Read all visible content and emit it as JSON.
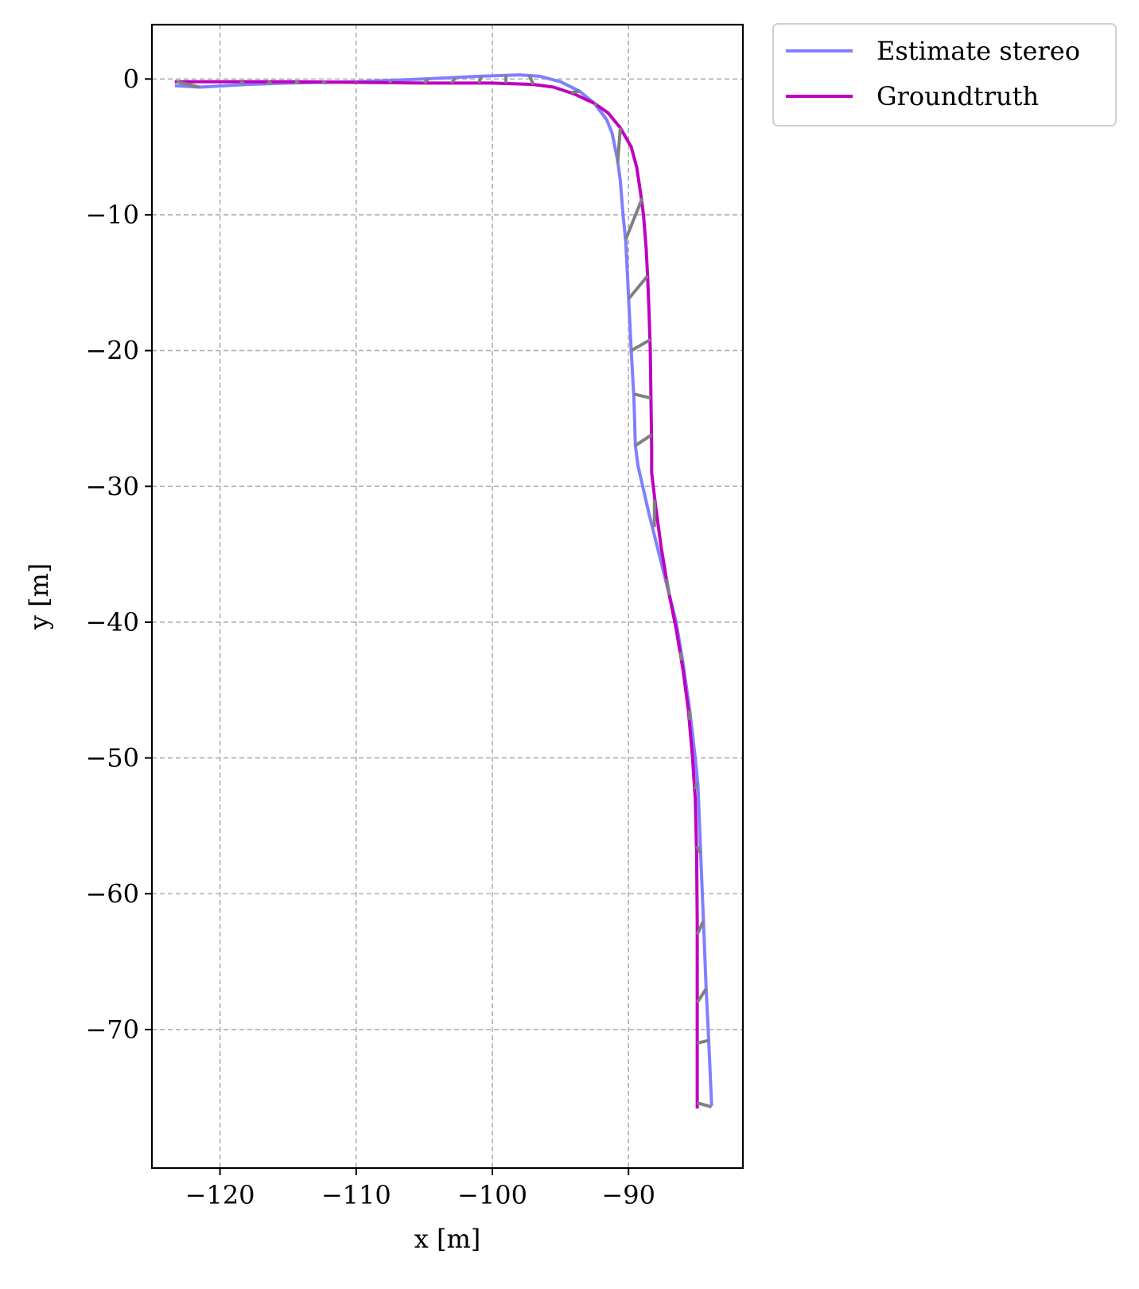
{
  "chart_data": {
    "type": "line",
    "title": "",
    "xlabel": "x [m]",
    "ylabel": "y [m]",
    "xlim": [
      -125,
      -81.6
    ],
    "ylim": [
      -80.2,
      4
    ],
    "xticks": [
      -120,
      -110,
      -100,
      -90
    ],
    "yticks": [
      0,
      -10,
      -20,
      -30,
      -40,
      -50,
      -60,
      -70
    ],
    "xtick_labels": [
      "−120",
      "−110",
      "−100",
      "−90"
    ],
    "ytick_labels": [
      "0",
      "−10",
      "−20",
      "−30",
      "−40",
      "−50",
      "−60",
      "−70"
    ],
    "grid": true,
    "legend_position": "outside-top-right",
    "series": [
      {
        "name": "Estimate stereo",
        "color": "#7f7fff",
        "points": [
          [
            -123.2,
            -0.5
          ],
          [
            -121.5,
            -0.6
          ],
          [
            -118,
            -0.4
          ],
          [
            -115,
            -0.3
          ],
          [
            -110,
            -0.2
          ],
          [
            -105,
            0.0
          ],
          [
            -101,
            0.2
          ],
          [
            -98,
            0.3
          ],
          [
            -96.5,
            0.2
          ],
          [
            -95,
            -0.2
          ],
          [
            -93.6,
            -0.9
          ],
          [
            -92.5,
            -1.8
          ],
          [
            -91.6,
            -3.0
          ],
          [
            -91.2,
            -4.0
          ],
          [
            -90.8,
            -6.0
          ],
          [
            -90.6,
            -7.5
          ],
          [
            -90.4,
            -10.0
          ],
          [
            -90.2,
            -12.0
          ],
          [
            -90.0,
            -16.0
          ],
          [
            -89.8,
            -20.0
          ],
          [
            -89.6,
            -23.5
          ],
          [
            -89.5,
            -27.0
          ],
          [
            -89.3,
            -28.5
          ],
          [
            -88.5,
            -32.0
          ],
          [
            -87.5,
            -36.0
          ],
          [
            -86.5,
            -40.0
          ],
          [
            -86.0,
            -43.0
          ],
          [
            -85.5,
            -46.5
          ],
          [
            -85.1,
            -50.0
          ],
          [
            -84.9,
            -52.0
          ],
          [
            -84.7,
            -57.0
          ],
          [
            -84.5,
            -62.0
          ],
          [
            -84.3,
            -67.0
          ],
          [
            -84.1,
            -71.0
          ],
          [
            -83.9,
            -75.5
          ]
        ]
      },
      {
        "name": "Groundtruth",
        "color": "#bf00bf",
        "points": [
          [
            -123.2,
            -0.2
          ],
          [
            -120,
            -0.2
          ],
          [
            -115,
            -0.2
          ],
          [
            -110,
            -0.25
          ],
          [
            -105,
            -0.3
          ],
          [
            -100,
            -0.3
          ],
          [
            -97,
            -0.4
          ],
          [
            -95.5,
            -0.6
          ],
          [
            -94,
            -1.1
          ],
          [
            -92.5,
            -1.8
          ],
          [
            -91.5,
            -2.5
          ],
          [
            -90.6,
            -3.6
          ],
          [
            -89.8,
            -5.0
          ],
          [
            -89.4,
            -6.5
          ],
          [
            -89.1,
            -8.5
          ],
          [
            -88.9,
            -10.0
          ],
          [
            -88.7,
            -12.5
          ],
          [
            -88.6,
            -14.5
          ],
          [
            -88.5,
            -17.0
          ],
          [
            -88.4,
            -20.0
          ],
          [
            -88.35,
            -23.5
          ],
          [
            -88.3,
            -27.0
          ],
          [
            -88.3,
            -29.0
          ],
          [
            -88.0,
            -31.5
          ],
          [
            -87.6,
            -34.5
          ],
          [
            -87.1,
            -37.5
          ],
          [
            -86.5,
            -40.5
          ],
          [
            -86.0,
            -43.5
          ],
          [
            -85.6,
            -46.5
          ],
          [
            -85.3,
            -50.0
          ],
          [
            -85.1,
            -53.0
          ],
          [
            -85.0,
            -57.0
          ],
          [
            -84.95,
            -62.0
          ],
          [
            -84.95,
            -67.0
          ],
          [
            -84.95,
            -71.0
          ],
          [
            -84.95,
            -75.7
          ]
        ]
      }
    ],
    "error_segments": {
      "color": "#808080",
      "segments": [
        [
          [
            -123.2,
            -0.2
          ],
          [
            -121.5,
            -0.6
          ]
        ],
        [
          [
            -118.5,
            -0.2
          ],
          [
            -118.2,
            -0.4
          ]
        ],
        [
          [
            -116.5,
            -0.2
          ],
          [
            -116.2,
            -0.35
          ]
        ],
        [
          [
            -114.5,
            -0.2
          ],
          [
            -114.2,
            -0.3
          ]
        ],
        [
          [
            -112.5,
            -0.25
          ],
          [
            -112.2,
            -0.3
          ]
        ],
        [
          [
            -110,
            -0.25
          ],
          [
            -110,
            -0.2
          ]
        ],
        [
          [
            -107.5,
            -0.3
          ],
          [
            -107.5,
            -0.15
          ]
        ],
        [
          [
            -105,
            -0.3
          ],
          [
            -104.7,
            0.0
          ]
        ],
        [
          [
            -103,
            -0.3
          ],
          [
            -102.7,
            0.1
          ]
        ],
        [
          [
            -101,
            -0.3
          ],
          [
            -100.8,
            0.2
          ]
        ],
        [
          [
            -99,
            -0.3
          ],
          [
            -99,
            0.3
          ]
        ],
        [
          [
            -97,
            -0.4
          ],
          [
            -97.3,
            0.3
          ]
        ],
        [
          [
            -94.2,
            -1.0
          ],
          [
            -93.6,
            -0.9
          ]
        ],
        [
          [
            -92.5,
            -1.8
          ],
          [
            -92.3,
            -1.9
          ]
        ],
        [
          [
            -90.6,
            -3.6
          ],
          [
            -90.8,
            -6.2
          ]
        ],
        [
          [
            -89.0,
            -8.8
          ],
          [
            -90.2,
            -11.8
          ]
        ],
        [
          [
            -88.6,
            -14.5
          ],
          [
            -90.0,
            -16.2
          ]
        ],
        [
          [
            -88.4,
            -19.2
          ],
          [
            -89.8,
            -20.0
          ]
        ],
        [
          [
            -88.35,
            -23.5
          ],
          [
            -89.6,
            -23.2
          ]
        ],
        [
          [
            -88.3,
            -26.2
          ],
          [
            -89.5,
            -27.0
          ]
        ],
        [
          [
            -88.1,
            -31.0
          ],
          [
            -88.1,
            -33.0
          ]
        ],
        [
          [
            -87.2,
            -36.8
          ],
          [
            -87.0,
            -38.0
          ]
        ],
        [
          [
            -86.1,
            -42.8
          ],
          [
            -86.2,
            -42.2
          ]
        ],
        [
          [
            -85.5,
            -46.5
          ],
          [
            -85.5,
            -47.2
          ]
        ],
        [
          [
            -85.1,
            -52.3
          ],
          [
            -85.0,
            -51.8
          ]
        ],
        [
          [
            -85.0,
            -56.5
          ],
          [
            -84.7,
            -57.0
          ]
        ],
        [
          [
            -84.95,
            -63.0
          ],
          [
            -84.5,
            -62.0
          ]
        ],
        [
          [
            -84.95,
            -68.0
          ],
          [
            -84.3,
            -67.0
          ]
        ],
        [
          [
            -84.95,
            -71.0
          ],
          [
            -84.1,
            -70.8
          ]
        ],
        [
          [
            -84.95,
            -75.4
          ],
          [
            -83.9,
            -75.7
          ]
        ]
      ]
    }
  }
}
